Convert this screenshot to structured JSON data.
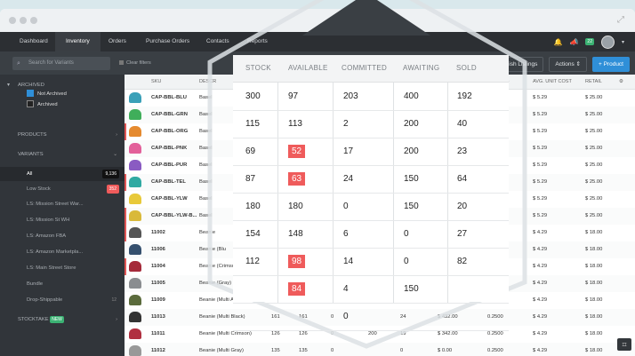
{
  "nav": {
    "items": [
      "Dashboard",
      "Inventory",
      "Orders",
      "Purchase Orders",
      "Contacts",
      "Reports"
    ],
    "active": "Inventory",
    "notification_count": "22"
  },
  "toolbar": {
    "search_placeholder": "Search for Variants",
    "clear_filters": "Clear filters",
    "publish": "Publish Listings",
    "actions": "Actions ⇕",
    "add_product": "+ Product"
  },
  "sidebar": {
    "archived": "ARCHIVED",
    "not_archived": "Not Archived",
    "archived_opt": "Archived",
    "products": "PRODUCTS",
    "variants": "VARIANTS",
    "items": [
      {
        "label": "All",
        "count": "9,136"
      },
      {
        "label": "Low Stock",
        "count": "352"
      },
      {
        "label": "LS: Mission Street War...",
        "count": ""
      },
      {
        "label": "LS: Mission St WH",
        "count": ""
      },
      {
        "label": "LS: Amazon FBA",
        "count": ""
      },
      {
        "label": "LS: Amazon Marketpla...",
        "count": ""
      },
      {
        "label": "LS: Main Street Store",
        "count": ""
      },
      {
        "label": "Bundle",
        "count": ""
      },
      {
        "label": "Drop-Shippable",
        "count": "12"
      }
    ],
    "stocktake": "STOCKTAKE",
    "stocktake_badge": "NEW"
  },
  "table": {
    "headers": {
      "sku": "SKU",
      "desc": "DESCR",
      "avg": "AVG. UNIT COST",
      "retail": "RETAIL",
      "s": "S)"
    },
    "rows": [
      {
        "sku": "CAP-BBL-BLU",
        "desc": "Basel",
        "avg": "$ 5.29",
        "retail": "$ 25.00",
        "color": "#3aa0b8",
        "red": false,
        "extra": [
          "",
          "",
          "",
          "",
          "",
          "",
          ""
        ]
      },
      {
        "sku": "CAP-BBL-GRN",
        "desc": "Basel",
        "avg": "$ 5.29",
        "retail": "$ 25.00",
        "color": "#3fae5a",
        "red": false,
        "extra": [
          "",
          "",
          "",
          "",
          "",
          "",
          ""
        ]
      },
      {
        "sku": "CAP-BBL-ORG",
        "desc": "Basel",
        "avg": "$ 5.29",
        "retail": "$ 25.00",
        "color": "#e58a2f",
        "red": true,
        "extra": [
          "",
          "",
          "",
          "",
          "",
          "",
          ""
        ]
      },
      {
        "sku": "CAP-BBL-PNK",
        "desc": "Basel",
        "avg": "$ 5.29",
        "retail": "$ 25.00",
        "color": "#e3609a",
        "red": false,
        "extra": [
          "",
          "",
          "",
          "",
          "",
          "",
          ""
        ]
      },
      {
        "sku": "CAP-BBL-PUR",
        "desc": "Basel",
        "avg": "$ 5.29",
        "retail": "$ 25.00",
        "color": "#8a5bc2",
        "red": false,
        "extra": [
          "",
          "",
          "",
          "",
          "",
          "",
          ""
        ]
      },
      {
        "sku": "CAP-BBL-TEL",
        "desc": "Basel",
        "avg": "$ 5.29",
        "retail": "$ 25.00",
        "color": "#2fa9a2",
        "red": true,
        "extra": [
          "",
          "",
          "",
          "",
          "",
          "",
          ""
        ]
      },
      {
        "sku": "CAP-BBL-YLW",
        "desc": "Basel",
        "avg": "$ 5.29",
        "retail": "$ 25.00",
        "color": "#e8c93a",
        "red": false,
        "extra": [
          "",
          "",
          "",
          "",
          "",
          "",
          ""
        ]
      },
      {
        "sku": "CAP-BBL-YLW-B...",
        "desc": "Basel",
        "avg": "$ 5.29",
        "retail": "$ 25.00",
        "color": "#d9b93a",
        "red": true,
        "extra": [
          "",
          "",
          "",
          "",
          "",
          "",
          ""
        ]
      },
      {
        "sku": "11002",
        "desc": "Beanie",
        "avg": "$ 4.29",
        "retail": "$ 18.00",
        "color": "#555",
        "red": true,
        "extra": [
          "",
          "",
          "",
          "",
          "",
          "",
          ""
        ]
      },
      {
        "sku": "11006",
        "desc": "Beanie (Blu",
        "avg": "$ 4.29",
        "retail": "$ 18.00",
        "color": "#35506e",
        "red": false,
        "extra": [
          "",
          "",
          "",
          "",
          "",
          "",
          ""
        ]
      },
      {
        "sku": "11004",
        "desc": "Beanie (Crimson)",
        "avg": "$ 4.29",
        "retail": "$ 18.00",
        "color": "#a52a3a",
        "red": true,
        "extra": [
          "",
          "",
          "",
          "",
          "",
          "",
          ""
        ]
      },
      {
        "sku": "11005",
        "desc": "Beanie (Gray)",
        "avg": "$ 4.29",
        "retail": "$ 18.00",
        "color": "#8a8d90",
        "red": false,
        "extra": [
          "10",
          "",
          "",
          "",
          "",
          "$ 684.00",
          "0.2500"
        ]
      },
      {
        "sku": "11009",
        "desc": "Beanie (Multi Army Green)",
        "avg": "$ 4.29",
        "retail": "$ 18.00",
        "color": "#5b6b3c",
        "red": false,
        "extra": [
          "126",
          "126",
          "",
          "",
          "",
          "$ 486.00",
          "0.2500"
        ]
      },
      {
        "sku": "11013",
        "desc": "Beanie (Multi Black)",
        "avg": "$ 4.29",
        "retail": "$ 18.00",
        "color": "#333",
        "red": false,
        "extra": [
          "161",
          "161",
          "0",
          "",
          "24",
          "$ 432.00",
          "0.2500"
        ]
      },
      {
        "sku": "11011",
        "desc": "Beanie (Multi Crimson)",
        "avg": "$ 4.29",
        "retail": "$ 18.00",
        "color": "#b03040",
        "red": false,
        "extra": [
          "126",
          "126",
          "0",
          "200",
          "19",
          "$ 342.00",
          "0.2500"
        ]
      },
      {
        "sku": "11012",
        "desc": "Beanie (Multi Gray)",
        "avg": "$ 4.29",
        "retail": "$ 18.00",
        "color": "#999",
        "red": false,
        "extra": [
          "135",
          "135",
          "0",
          "",
          "0",
          "$ 0.00",
          "0.2500"
        ]
      }
    ]
  },
  "overlay": {
    "headers": [
      "STOCK",
      "AVAILABLE",
      "COMMITTED",
      "AWAITING",
      "SOLD"
    ],
    "rows": [
      [
        "300",
        "97",
        "203",
        "400",
        "192"
      ],
      [
        "115",
        "113",
        "2",
        "200",
        "40"
      ],
      [
        "69",
        "52",
        "17",
        "200",
        "23"
      ],
      [
        "87",
        "63",
        "24",
        "150",
        "64"
      ],
      [
        "180",
        "180",
        "0",
        "150",
        "20"
      ],
      [
        "154",
        "148",
        "6",
        "0",
        "27"
      ],
      [
        "112",
        "98",
        "14",
        "0",
        "82"
      ],
      [
        "",
        "84",
        "4",
        "150",
        ""
      ],
      [
        "",
        "",
        "0",
        "",
        ""
      ]
    ],
    "red_cells": [
      "2-1",
      "3-1",
      "6-1",
      "7-1"
    ]
  },
  "colors": {
    "nav_bg": "#2c2f33",
    "accent": "#2f8fd8",
    "low_stock": "#ef5b5b"
  }
}
